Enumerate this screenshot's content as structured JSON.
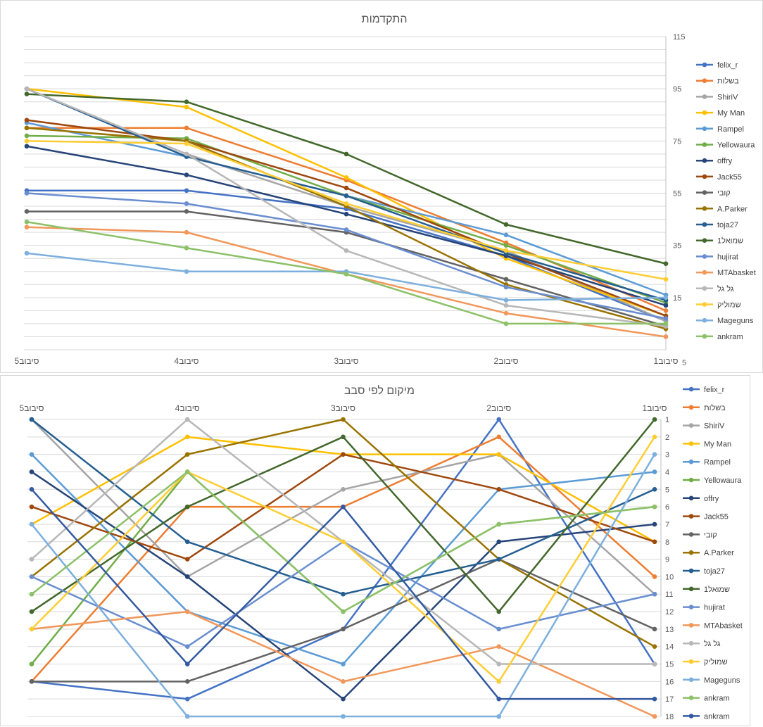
{
  "colors": {
    "felix_r": "#4472c4",
    "בשלות": "#ed7d31",
    "ShiriV": "#a5a5a5",
    "My Man": "#ffc000",
    "Rampel": "#5b9bd5",
    "Yellowaura": "#70ad47",
    "offry": "#264478",
    "Jack55": "#9e480e",
    "קובי": "#636363",
    "A.Parker": "#997300",
    "toja27": "#255e91",
    "שמואל1": "#43682b",
    "hujirat": "#698ed0",
    "MTAbasket": "#f1975a",
    "גל גל": "#b7b7b7",
    "שמוליק": "#ffcd33",
    "Mageguns": "#7cafdd",
    "ankram": "#8cc168",
    "ankram_2": "#335aa1"
  },
  "chart_data": [
    {
      "type": "line",
      "title": "התקדמות",
      "categories": [
        "סיבוב5",
        "סיבוב4",
        "סיבוב3",
        "סיבוב2",
        "סיבוב1"
      ],
      "y_axis_position": "right",
      "y_ticks": [
        15,
        35,
        55,
        75,
        95,
        115
      ],
      "y_tick_label_bottom": "5",
      "ylim": [
        -5,
        115
      ],
      "grid": true,
      "legend_position": "right",
      "series": [
        {
          "name": "felix_r",
          "values": [
            56,
            56,
            49,
            31,
            6
          ]
        },
        {
          "name": "בשלות",
          "values": [
            80,
            80,
            60,
            36,
            10
          ]
        },
        {
          "name": "ShiriV",
          "values": [
            95,
            70,
            50,
            33,
            6
          ]
        },
        {
          "name": "My Man",
          "values": [
            95,
            88,
            61,
            30,
            8
          ]
        },
        {
          "name": "Rampel",
          "values": [
            82,
            69,
            54,
            39,
            16
          ]
        },
        {
          "name": "Yellowaura",
          "values": [
            77,
            76,
            54,
            35,
            13
          ]
        },
        {
          "name": "offry",
          "values": [
            73,
            62,
            47,
            31,
            12
          ]
        },
        {
          "name": "Jack55",
          "values": [
            83,
            75,
            57,
            32,
            8
          ]
        },
        {
          "name": "קובי",
          "values": [
            48,
            48,
            40,
            22,
            4
          ]
        },
        {
          "name": "A.Parker",
          "values": [
            80,
            75,
            50,
            20,
            3
          ]
        },
        {
          "name": "toja27",
          "values": [
            95,
            69,
            54,
            32,
            14
          ]
        },
        {
          "name": "שמואל1",
          "values": [
            93,
            90,
            70,
            43,
            28
          ]
        },
        {
          "name": "hujirat",
          "values": [
            55,
            51,
            41,
            19,
            7
          ]
        },
        {
          "name": "MTAbasket",
          "values": [
            42,
            40,
            24,
            9,
            0
          ]
        },
        {
          "name": "גל גל",
          "values": [
            95,
            70,
            33,
            12,
            4
          ]
        },
        {
          "name": "שמוליק",
          "values": [
            75,
            74,
            51,
            33,
            22
          ]
        },
        {
          "name": "Mageguns",
          "values": [
            32,
            25,
            25,
            14,
            15
          ]
        },
        {
          "name": "ankram",
          "values": [
            44,
            34,
            24,
            5,
            5
          ]
        }
      ]
    },
    {
      "type": "line",
      "title": "מיקום לפי סבב",
      "categories": [
        "סיבוב5",
        "סיבוב4",
        "סיבוב3",
        "סיבוב2",
        "סיבוב1"
      ],
      "y_axis_position": "right",
      "y_reversed": true,
      "y_ticks": [
        1,
        2,
        3,
        4,
        5,
        6,
        7,
        8,
        9,
        10,
        11,
        12,
        13,
        14,
        15,
        16,
        17,
        18
      ],
      "ylim": [
        1,
        18
      ],
      "grid": true,
      "legend_position": "right",
      "series": [
        {
          "name": "felix_r",
          "values": [
            16,
            17,
            13,
            1,
            15
          ]
        },
        {
          "name": "בשלות",
          "values": [
            16,
            6,
            6,
            2,
            10
          ]
        },
        {
          "name": "ShiriV",
          "values": [
            1,
            10,
            5,
            3,
            11
          ]
        },
        {
          "name": "My Man",
          "values": [
            7,
            2,
            3,
            3,
            8
          ]
        },
        {
          "name": "Rampel",
          "values": [
            3,
            12,
            15,
            5,
            4
          ]
        },
        {
          "name": "Yellowaura",
          "values": [
            15,
            4,
            12,
            7,
            6
          ]
        },
        {
          "name": "offry",
          "values": [
            4,
            10,
            17,
            8,
            7
          ]
        },
        {
          "name": "Jack55",
          "values": [
            6,
            9,
            3,
            5,
            8
          ]
        },
        {
          "name": "קובי",
          "values": [
            16,
            16,
            13,
            9,
            13
          ]
        },
        {
          "name": "A.Parker",
          "values": [
            10,
            3,
            1,
            9,
            14
          ]
        },
        {
          "name": "toja27",
          "values": [
            1,
            8,
            11,
            9,
            5
          ]
        },
        {
          "name": "שמואל1",
          "values": [
            12,
            6,
            2,
            12,
            1
          ]
        },
        {
          "name": "hujirat",
          "values": [
            10,
            14,
            8,
            13,
            11
          ]
        },
        {
          "name": "MTAbasket",
          "values": [
            13,
            12,
            16,
            14,
            18
          ]
        },
        {
          "name": "גל גל",
          "values": [
            9,
            1,
            8,
            15,
            15
          ]
        },
        {
          "name": "שמוליק",
          "values": [
            13,
            4,
            8,
            16,
            2
          ]
        },
        {
          "name": "Mageguns",
          "values": [
            7,
            18,
            18,
            18,
            3
          ]
        },
        {
          "name": "ankram",
          "values": [
            11,
            4,
            12,
            7,
            6
          ]
        },
        {
          "name": "ankram",
          "values": [
            5,
            15,
            6,
            17,
            17
          ]
        }
      ]
    }
  ]
}
